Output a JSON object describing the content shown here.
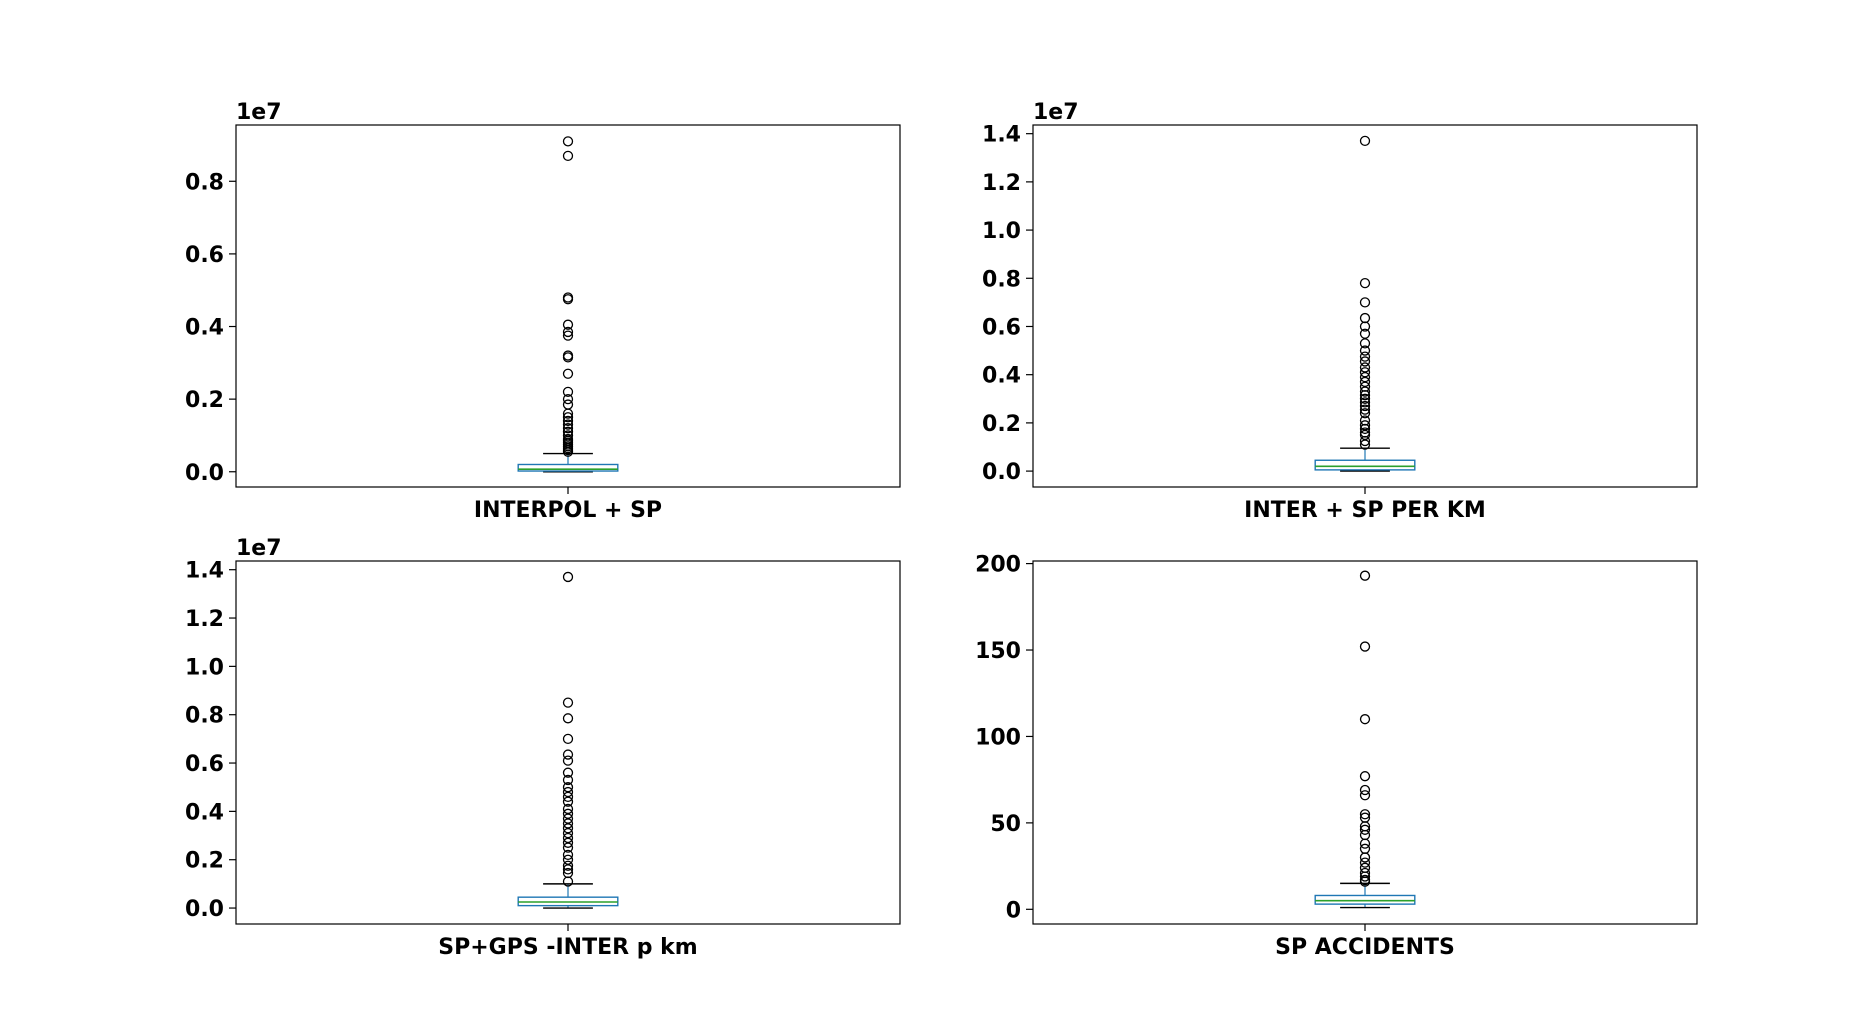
{
  "chart_data": [
    {
      "type": "box",
      "category": "INTERPOL + SP",
      "ylim": [
        -0.042,
        0.955
      ],
      "yticks": [
        0.0,
        0.2,
        0.4,
        0.6,
        0.8
      ],
      "ytick_labels": [
        "0.0",
        "0.2",
        "0.4",
        "0.6",
        "0.8"
      ],
      "offset_text": "1e7",
      "box": {
        "whisker_low": 0.0,
        "q1": 0.002,
        "median": 0.007,
        "q3": 0.02,
        "whisker_high": 0.05
      },
      "outliers": [
        0.91,
        0.87,
        0.48,
        0.475,
        0.405,
        0.385,
        0.375,
        0.32,
        0.315,
        0.27,
        0.22,
        0.2,
        0.185,
        0.16,
        0.15,
        0.14,
        0.13,
        0.12,
        0.11,
        0.1,
        0.09,
        0.085,
        0.08,
        0.075,
        0.07,
        0.065,
        0.06,
        0.055
      ]
    },
    {
      "type": "box",
      "category": "INTER + SP PER KM",
      "ylim": [
        -0.066,
        1.436
      ],
      "yticks": [
        0.0,
        0.2,
        0.4,
        0.6,
        0.8,
        1.0,
        1.2,
        1.4
      ],
      "ytick_labels": [
        "0.0",
        "0.2",
        "0.4",
        "0.6",
        "0.8",
        "1.0",
        "1.2",
        "1.4"
      ],
      "offset_text": "1e7",
      "box": {
        "whisker_low": 0.0,
        "q1": 0.005,
        "median": 0.02,
        "q3": 0.045,
        "whisker_high": 0.095
      },
      "outliers": [
        1.37,
        0.78,
        0.7,
        0.635,
        0.6,
        0.57,
        0.53,
        0.5,
        0.475,
        0.455,
        0.43,
        0.41,
        0.39,
        0.37,
        0.35,
        0.33,
        0.315,
        0.3,
        0.285,
        0.27,
        0.255,
        0.24,
        0.21,
        0.19,
        0.175,
        0.16,
        0.15,
        0.125,
        0.11
      ]
    },
    {
      "type": "box",
      "category": "SP+GPS -INTER p km",
      "ylim": [
        -0.066,
        1.436
      ],
      "yticks": [
        0.0,
        0.2,
        0.4,
        0.6,
        0.8,
        1.0,
        1.2,
        1.4
      ],
      "ytick_labels": [
        "0.0",
        "0.2",
        "0.4",
        "0.6",
        "0.8",
        "1.0",
        "1.2",
        "1.4"
      ],
      "offset_text": "1e7",
      "box": {
        "whisker_low": 0.0,
        "q1": 0.01,
        "median": 0.025,
        "q3": 0.045,
        "whisker_high": 0.1
      },
      "outliers": [
        1.37,
        0.85,
        0.785,
        0.7,
        0.635,
        0.61,
        0.56,
        0.53,
        0.5,
        0.48,
        0.46,
        0.44,
        0.41,
        0.39,
        0.37,
        0.35,
        0.33,
        0.31,
        0.29,
        0.27,
        0.25,
        0.22,
        0.2,
        0.175,
        0.16,
        0.145,
        0.11
      ]
    },
    {
      "type": "box",
      "category": "SP ACCIDENTS",
      "ylim": [
        -8.5,
        201.5
      ],
      "yticks": [
        0,
        50,
        100,
        150,
        200
      ],
      "ytick_labels": [
        "0",
        "50",
        "100",
        "150",
        "200"
      ],
      "offset_text": "",
      "box": {
        "whisker_low": 1,
        "q1": 3,
        "median": 5,
        "q3": 8,
        "whisker_high": 15
      },
      "outliers": [
        193,
        152,
        110,
        77,
        69,
        66,
        55,
        53,
        48,
        46,
        43,
        38,
        35,
        30,
        27,
        24,
        21,
        19,
        17,
        16
      ]
    }
  ]
}
